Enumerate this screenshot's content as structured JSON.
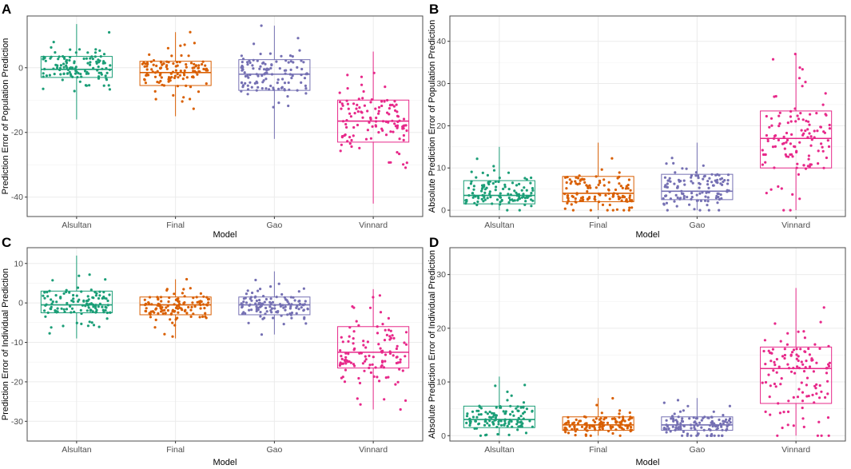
{
  "chart_data": [
    {
      "panel": "A",
      "type": "boxplot-jitter",
      "ylabel": "Prediction Error of Population Prediction",
      "xlabel": "Model",
      "categories": [
        "Alsultan",
        "Final",
        "Gao",
        "Vinnard"
      ],
      "ylim": [
        -46,
        16
      ],
      "yticks": [
        -40,
        -20,
        0
      ],
      "boxes": [
        {
          "q1": -3.0,
          "median": -0.5,
          "q3": 3.5,
          "low": -16,
          "high": 13.5
        },
        {
          "q1": -5.5,
          "median": -1.5,
          "q3": 2.0,
          "low": -15,
          "high": 11
        },
        {
          "q1": -7.0,
          "median": -2.0,
          "q3": 2.5,
          "low": -22,
          "high": 13
        },
        {
          "q1": -23.0,
          "median": -16.5,
          "q3": -10.0,
          "low": -42,
          "high": 5
        }
      ],
      "points": {
        "n": 120,
        "spread": [
          1,
          1,
          1,
          1
        ]
      }
    },
    {
      "panel": "B",
      "type": "boxplot-jitter",
      "ylabel": "Absolute Prediction Error of Population Prediction",
      "xlabel": "Model",
      "categories": [
        "Alsultan",
        "Final",
        "Gao",
        "Vinnard"
      ],
      "ylim": [
        -1.5,
        46
      ],
      "yticks": [
        0,
        10,
        20,
        30,
        40
      ],
      "boxes": [
        {
          "q1": 1.5,
          "median": 3.5,
          "q3": 7.0,
          "low": 0,
          "high": 15
        },
        {
          "q1": 2.0,
          "median": 4.0,
          "q3": 8.0,
          "low": 0,
          "high": 16
        },
        {
          "q1": 2.5,
          "median": 4.5,
          "q3": 8.5,
          "low": 0,
          "high": 16
        },
        {
          "q1": 10.0,
          "median": 17.0,
          "q3": 23.5,
          "low": 0,
          "high": 37
        }
      ],
      "points": {
        "n": 120,
        "spread": [
          1,
          1,
          1,
          1
        ]
      }
    },
    {
      "panel": "C",
      "type": "boxplot-jitter",
      "ylabel": "Prediction Error of Individual Prediction",
      "xlabel": "Model",
      "categories": [
        "Alsultan",
        "Final",
        "Gao",
        "Vinnard"
      ],
      "ylim": [
        -35,
        14
      ],
      "yticks": [
        -30,
        -20,
        -10,
        0,
        10
      ],
      "boxes": [
        {
          "q1": -2.5,
          "median": -0.5,
          "q3": 3.0,
          "low": -9,
          "high": 12
        },
        {
          "q1": -3.0,
          "median": -0.5,
          "q3": 1.5,
          "low": -9,
          "high": 6
        },
        {
          "q1": -3.0,
          "median": -0.5,
          "q3": 1.5,
          "low": -8,
          "high": 8
        },
        {
          "q1": -16.5,
          "median": -12.5,
          "q3": -6.0,
          "low": -27,
          "high": 3.5
        }
      ],
      "points": {
        "n": 120,
        "spread": [
          1,
          1,
          1,
          1
        ]
      }
    },
    {
      "panel": "D",
      "type": "boxplot-jitter",
      "ylabel": "Absolute Prediction Error of Individual Prediction",
      "xlabel": "Model",
      "categories": [
        "Alsultan",
        "Final",
        "Gao",
        "Vinnard"
      ],
      "ylim": [
        -1,
        35
      ],
      "yticks": [
        0,
        10,
        20,
        30
      ],
      "boxes": [
        {
          "q1": 1.5,
          "median": 3.0,
          "q3": 5.5,
          "low": 0,
          "high": 11
        },
        {
          "q1": 1.0,
          "median": 2.0,
          "q3": 3.5,
          "low": 0,
          "high": 7
        },
        {
          "q1": 1.0,
          "median": 2.0,
          "q3": 3.5,
          "low": 0,
          "high": 7
        },
        {
          "q1": 6.0,
          "median": 12.5,
          "q3": 16.5,
          "low": 0,
          "high": 27.5
        }
      ],
      "points": {
        "n": 120,
        "spread": [
          1,
          1,
          1,
          1
        ]
      }
    }
  ],
  "colors": {
    "Alsultan": "#1b9e77",
    "Final": "#d95f02",
    "Gao": "#7570b3",
    "Vinnard": "#e7298a",
    "panel_border": "#4d4d4d",
    "grid_major": "#ebebeb"
  }
}
